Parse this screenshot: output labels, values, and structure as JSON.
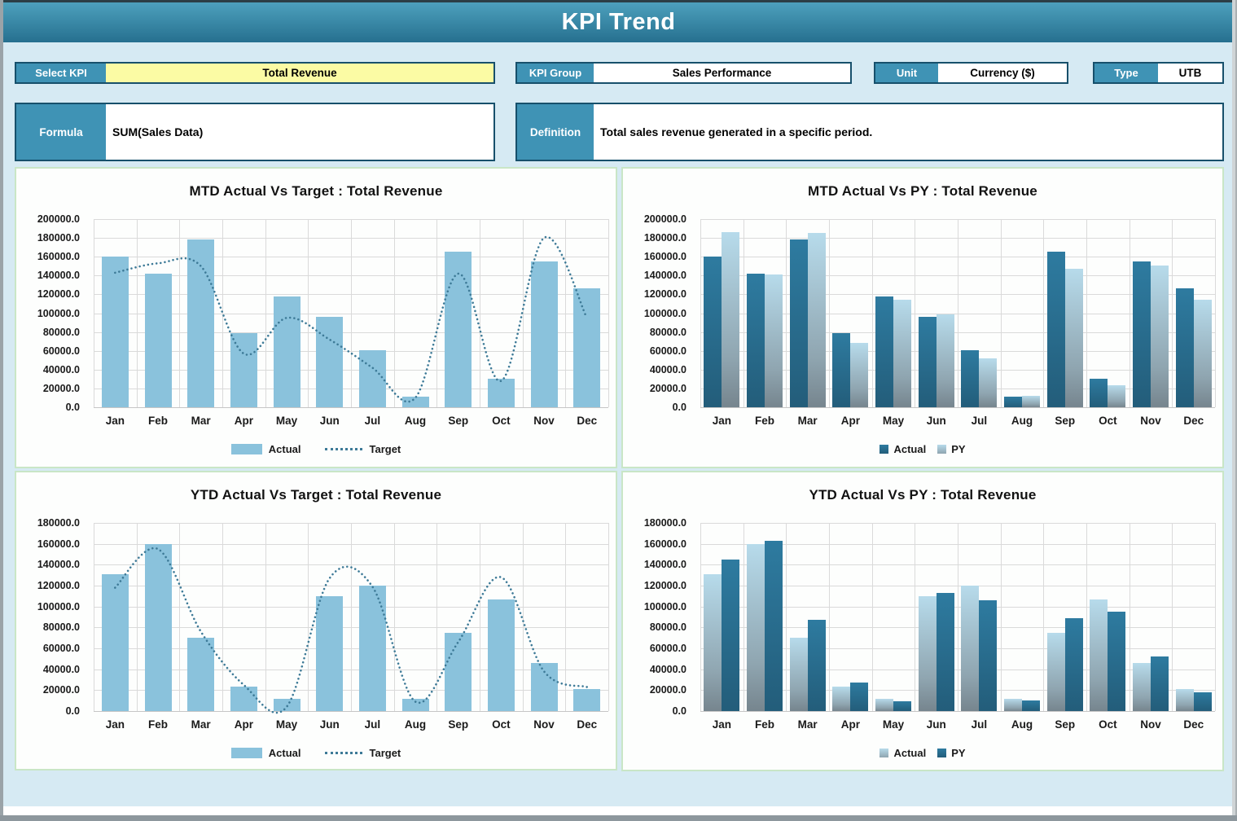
{
  "window": {
    "title": "KPI Trend"
  },
  "controls": {
    "select_kpi": {
      "label": "Select KPI",
      "value": "Total Revenue"
    },
    "kpi_group": {
      "label": "KPI Group",
      "value": "Sales Performance"
    },
    "unit": {
      "label": "Unit",
      "value": "Currency ($)"
    },
    "type": {
      "label": "Type",
      "value": "UTB"
    },
    "formula": {
      "label": "Formula",
      "value": "SUM(Sales Data)"
    },
    "definition": {
      "label": "Definition",
      "value": "Total sales revenue generated in a specific period."
    }
  },
  "colors": {
    "header_gradient_top": "#4da0bd",
    "header_gradient_bottom": "#26708f",
    "label_teal": "#3f93b5",
    "control_border": "#17506b",
    "highlight_yellow": "#fbfba4",
    "page_background": "#d6eaf3",
    "panel_border": "#c9e6c6",
    "grid_line": "#dadada",
    "bar_light": "#8ac2dc",
    "bar_dark": "#2e7ba0",
    "bar_fade_top": "#b7dbeb",
    "bar_fade_bottom": "#76858e",
    "target_line": "#3d7a97"
  },
  "chart_data": [
    {
      "type": "bar+line",
      "title": "MTD Actual Vs Target : Total Revenue",
      "categories": [
        "Jan",
        "Feb",
        "Mar",
        "Apr",
        "May",
        "Jun",
        "Jul",
        "Aug",
        "Sep",
        "Oct",
        "Nov",
        "Dec"
      ],
      "series": [
        {
          "name": "Actual",
          "kind": "bar",
          "style": "light",
          "values": [
            160000,
            142000,
            178000,
            79000,
            118000,
            96000,
            61000,
            11000,
            165000,
            30000,
            155000,
            126000
          ]
        },
        {
          "name": "Target",
          "kind": "line",
          "style": "dotted",
          "values": [
            143000,
            153000,
            150000,
            57000,
            95000,
            72000,
            42000,
            10000,
            142000,
            28000,
            180000,
            95000
          ]
        }
      ],
      "ylabel_format": "one_decimal",
      "ylim": [
        0,
        200000
      ],
      "ystep": 20000,
      "grid": true,
      "legend_position": "bottom"
    },
    {
      "type": "grouped-bar",
      "title": "MTD Actual Vs PY : Total Revenue",
      "categories": [
        "Jan",
        "Feb",
        "Mar",
        "Apr",
        "May",
        "Jun",
        "Jul",
        "Aug",
        "Sep",
        "Oct",
        "Nov",
        "Dec"
      ],
      "series": [
        {
          "name": "Actual",
          "kind": "bar",
          "style": "dark",
          "values": [
            160000,
            142000,
            178000,
            79000,
            118000,
            96000,
            61000,
            11000,
            165000,
            30000,
            155000,
            126000
          ]
        },
        {
          "name": "PY",
          "kind": "bar",
          "style": "fade",
          "values": [
            186000,
            141000,
            185000,
            68000,
            114000,
            99000,
            52000,
            12000,
            147000,
            23000,
            151000,
            114000
          ]
        }
      ],
      "ylabel_format": "one_decimal",
      "ylim": [
        0,
        200000
      ],
      "ystep": 20000,
      "grid": true,
      "legend_position": "bottom"
    },
    {
      "type": "bar+line",
      "title": "YTD Actual Vs Target : Total Revenue",
      "categories": [
        "Jan",
        "Feb",
        "Mar",
        "Apr",
        "May",
        "Jun",
        "Jul",
        "Aug",
        "Sep",
        "Oct",
        "Nov",
        "Dec"
      ],
      "series": [
        {
          "name": "Actual",
          "kind": "bar",
          "style": "light",
          "values": [
            131000,
            160000,
            70000,
            23000,
            12000,
            110000,
            120000,
            12000,
            75000,
            107000,
            46000,
            21000
          ]
        },
        {
          "name": "Target",
          "kind": "line",
          "style": "dotted",
          "values": [
            118000,
            155000,
            76000,
            25000,
            4000,
            127000,
            119000,
            9000,
            66000,
            128000,
            38000,
            23000
          ]
        }
      ],
      "ylabel_format": "one_decimal",
      "ylim": [
        0,
        180000
      ],
      "ystep": 20000,
      "grid": true,
      "legend_position": "bottom"
    },
    {
      "type": "grouped-bar",
      "title": "YTD Actual Vs PY : Total Revenue",
      "categories": [
        "Jan",
        "Feb",
        "Mar",
        "Apr",
        "May",
        "Jun",
        "Jul",
        "Aug",
        "Sep",
        "Oct",
        "Nov",
        "Dec"
      ],
      "series": [
        {
          "name": "Actual",
          "kind": "bar",
          "style": "fade",
          "values": [
            131000,
            160000,
            70000,
            23000,
            12000,
            110000,
            120000,
            12000,
            75000,
            107000,
            46000,
            21000
          ]
        },
        {
          "name": "PY",
          "kind": "bar",
          "style": "dark",
          "values": [
            145000,
            163000,
            87000,
            27000,
            9000,
            113000,
            106000,
            10000,
            89000,
            95000,
            52000,
            18000
          ]
        }
      ],
      "ylabel_format": "one_decimal",
      "ylim": [
        0,
        180000
      ],
      "ystep": 20000,
      "grid": true,
      "legend_position": "bottom"
    }
  ]
}
